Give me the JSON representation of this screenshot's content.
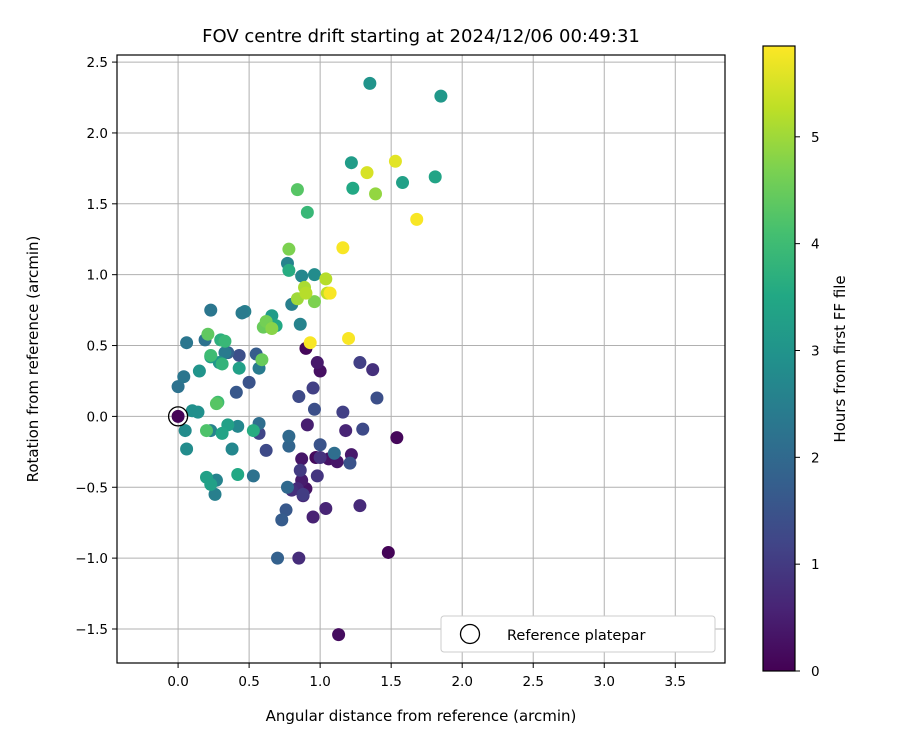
{
  "chart_data": {
    "type": "scatter",
    "title": "FOV centre drift starting at 2024/12/06 00:49:31",
    "xlabel": "Angular distance from reference (arcmin)",
    "ylabel": "Rotation from reference (arcmin)",
    "xlim": [
      -0.43,
      3.85
    ],
    "ylim": [
      -1.74,
      2.55
    ],
    "xticks": [
      "0.0",
      "0.5",
      "1.0",
      "1.5",
      "2.0",
      "2.5",
      "3.0",
      "3.5"
    ],
    "yticks": [
      "−1.5",
      "−1.0",
      "−0.5",
      "0.0",
      "0.5",
      "1.0",
      "1.5",
      "2.0",
      "2.5"
    ],
    "grid": true,
    "colormap": "viridis",
    "colorbar": {
      "label": "Hours from first FF file",
      "range": [
        0,
        5.85
      ],
      "ticks": [
        "0",
        "1",
        "2",
        "3",
        "4",
        "5"
      ]
    },
    "legend": {
      "placement": "lower-right",
      "entries": [
        "Reference platepar"
      ]
    },
    "reference_point": {
      "x": 0.0,
      "y": 0.0,
      "label": "Reference platepar"
    },
    "series": [
      {
        "points": [
          {
            "x": 0.0,
            "y": 0.0,
            "h": 0.05
          },
          {
            "x": 0.9,
            "y": 0.48,
            "h": 0.1
          },
          {
            "x": 1.48,
            "y": -0.96,
            "h": 0.05
          },
          {
            "x": 1.13,
            "y": -1.54,
            "h": 0.2
          },
          {
            "x": 1.54,
            "y": -0.15,
            "h": 0.1
          },
          {
            "x": 0.97,
            "y": -0.29,
            "h": 0.15
          },
          {
            "x": 1.0,
            "y": 0.32,
            "h": 0.25
          },
          {
            "x": 0.98,
            "y": 0.38,
            "h": 0.4
          },
          {
            "x": 0.87,
            "y": -0.3,
            "h": 0.35
          },
          {
            "x": 0.9,
            "y": -0.51,
            "h": 0.3
          },
          {
            "x": 0.87,
            "y": -0.45,
            "h": 0.45
          },
          {
            "x": 1.06,
            "y": -0.3,
            "h": 0.3
          },
          {
            "x": 1.12,
            "y": -0.32,
            "h": 0.35
          },
          {
            "x": 1.22,
            "y": -0.27,
            "h": 0.4
          },
          {
            "x": 1.18,
            "y": -0.1,
            "h": 0.6
          },
          {
            "x": 1.28,
            "y": -0.63,
            "h": 0.7
          },
          {
            "x": 0.91,
            "y": -0.06,
            "h": 0.5
          },
          {
            "x": 0.95,
            "y": -0.71,
            "h": 0.55
          },
          {
            "x": 1.04,
            "y": -0.65,
            "h": 0.6
          },
          {
            "x": 0.88,
            "y": -0.56,
            "h": 0.65
          },
          {
            "x": 0.84,
            "y": -0.51,
            "h": 0.7
          },
          {
            "x": 0.8,
            "y": -0.52,
            "h": 0.8
          },
          {
            "x": 0.85,
            "y": -1.0,
            "h": 0.75
          },
          {
            "x": 0.98,
            "y": -0.42,
            "h": 0.9
          },
          {
            "x": 1.0,
            "y": -0.29,
            "h": 0.85
          },
          {
            "x": 0.86,
            "y": -0.38,
            "h": 1.0
          },
          {
            "x": 0.88,
            "y": -0.55,
            "h": 1.05
          },
          {
            "x": 0.95,
            "y": 0.2,
            "h": 1.1
          },
          {
            "x": 1.37,
            "y": 0.33,
            "h": 0.8
          },
          {
            "x": 1.28,
            "y": 0.38,
            "h": 1.1
          },
          {
            "x": 1.16,
            "y": 0.03,
            "h": 1.1
          },
          {
            "x": 1.3,
            "y": -0.09,
            "h": 1.3
          },
          {
            "x": 1.4,
            "y": 0.13,
            "h": 1.4
          },
          {
            "x": 1.21,
            "y": -0.33,
            "h": 1.5
          },
          {
            "x": 0.85,
            "y": 0.14,
            "h": 1.3
          },
          {
            "x": 0.96,
            "y": 0.05,
            "h": 1.4
          },
          {
            "x": 1.0,
            "y": -0.2,
            "h": 1.5
          },
          {
            "x": 0.76,
            "y": -0.66,
            "h": 1.6
          },
          {
            "x": 0.73,
            "y": -0.73,
            "h": 1.7
          },
          {
            "x": 0.7,
            "y": -1.0,
            "h": 1.8
          },
          {
            "x": 0.57,
            "y": -0.12,
            "h": 1.2
          },
          {
            "x": 0.62,
            "y": -0.24,
            "h": 1.3
          },
          {
            "x": 0.43,
            "y": 0.43,
            "h": 1.4
          },
          {
            "x": 0.5,
            "y": 0.24,
            "h": 1.5
          },
          {
            "x": 0.41,
            "y": 0.17,
            "h": 1.6
          },
          {
            "x": 0.55,
            "y": 0.44,
            "h": 1.7
          },
          {
            "x": 0.35,
            "y": 0.45,
            "h": 1.8
          },
          {
            "x": 0.78,
            "y": -0.21,
            "h": 1.9
          },
          {
            "x": 0.77,
            "y": -0.5,
            "h": 2.0
          },
          {
            "x": 0.78,
            "y": -0.14,
            "h": 2.0
          },
          {
            "x": 1.1,
            "y": -0.26,
            "h": 2.1
          },
          {
            "x": 0.57,
            "y": -0.05,
            "h": 2.1
          },
          {
            "x": 0.53,
            "y": -0.42,
            "h": 2.2
          },
          {
            "x": 0.0,
            "y": 0.21,
            "h": 2.2
          },
          {
            "x": 0.04,
            "y": 0.28,
            "h": 2.3
          },
          {
            "x": 0.06,
            "y": 0.52,
            "h": 2.3
          },
          {
            "x": 0.19,
            "y": 0.54,
            "h": 2.2
          },
          {
            "x": 0.23,
            "y": 0.75,
            "h": 2.3
          },
          {
            "x": 0.33,
            "y": 0.45,
            "h": 2.4
          },
          {
            "x": 0.57,
            "y": 0.34,
            "h": 2.4
          },
          {
            "x": 0.47,
            "y": 0.74,
            "h": 2.5
          },
          {
            "x": 0.45,
            "y": 0.73,
            "h": 2.4
          },
          {
            "x": 0.8,
            "y": 0.79,
            "h": 2.5
          },
          {
            "x": 0.77,
            "y": 1.08,
            "h": 2.6
          },
          {
            "x": 0.86,
            "y": 0.65,
            "h": 2.6
          },
          {
            "x": 0.87,
            "y": 0.99,
            "h": 2.7
          },
          {
            "x": 0.96,
            "y": 1.0,
            "h": 2.8
          },
          {
            "x": 0.26,
            "y": -0.55,
            "h": 2.5
          },
          {
            "x": 0.27,
            "y": -0.45,
            "h": 2.6
          },
          {
            "x": 0.23,
            "y": -0.1,
            "h": 2.6
          },
          {
            "x": 0.38,
            "y": -0.23,
            "h": 2.7
          },
          {
            "x": 0.42,
            "y": -0.07,
            "h": 2.7
          },
          {
            "x": 0.05,
            "y": -0.1,
            "h": 2.8
          },
          {
            "x": 0.06,
            "y": -0.23,
            "h": 2.8
          },
          {
            "x": 0.1,
            "y": 0.04,
            "h": 2.9
          },
          {
            "x": 0.14,
            "y": 0.03,
            "h": 2.9
          },
          {
            "x": 0.15,
            "y": 0.32,
            "h": 3.0
          },
          {
            "x": 0.29,
            "y": 0.38,
            "h": 3.0
          },
          {
            "x": 0.23,
            "y": 0.42,
            "h": 3.2
          },
          {
            "x": 0.43,
            "y": 0.34,
            "h": 3.3
          },
          {
            "x": 0.35,
            "y": -0.06,
            "h": 3.3
          },
          {
            "x": 0.31,
            "y": -0.12,
            "h": 3.4
          },
          {
            "x": 0.2,
            "y": -0.43,
            "h": 3.3
          },
          {
            "x": 0.23,
            "y": -0.48,
            "h": 3.3
          },
          {
            "x": 0.42,
            "y": -0.41,
            "h": 3.5
          },
          {
            "x": 0.53,
            "y": -0.1,
            "h": 3.6
          },
          {
            "x": 0.66,
            "y": 0.71,
            "h": 3.2
          },
          {
            "x": 0.69,
            "y": 0.64,
            "h": 3.5
          },
          {
            "x": 1.35,
            "y": 2.35,
            "h": 3.0
          },
          {
            "x": 1.85,
            "y": 2.26,
            "h": 3.1
          },
          {
            "x": 1.22,
            "y": 1.79,
            "h": 3.2
          },
          {
            "x": 1.58,
            "y": 1.65,
            "h": 3.3
          },
          {
            "x": 1.81,
            "y": 1.69,
            "h": 3.4
          },
          {
            "x": 1.23,
            "y": 1.61,
            "h": 3.5
          },
          {
            "x": 0.78,
            "y": 1.03,
            "h": 3.6
          },
          {
            "x": 0.3,
            "y": 0.54,
            "h": 3.7
          },
          {
            "x": 0.31,
            "y": 0.37,
            "h": 3.8
          },
          {
            "x": 0.91,
            "y": 1.44,
            "h": 3.9
          },
          {
            "x": 0.33,
            "y": 0.53,
            "h": 3.9
          },
          {
            "x": 0.28,
            "y": 0.1,
            "h": 4.0
          },
          {
            "x": 0.23,
            "y": 0.43,
            "h": 4.0
          },
          {
            "x": 0.2,
            "y": -0.1,
            "h": 4.2
          },
          {
            "x": 0.27,
            "y": 0.09,
            "h": 4.3
          },
          {
            "x": 0.21,
            "y": 0.58,
            "h": 4.4
          },
          {
            "x": 0.59,
            "y": 0.4,
            "h": 4.5
          },
          {
            "x": 0.6,
            "y": 0.63,
            "h": 4.5
          },
          {
            "x": 0.62,
            "y": 0.67,
            "h": 4.6
          },
          {
            "x": 0.84,
            "y": 1.6,
            "h": 4.3
          },
          {
            "x": 0.78,
            "y": 1.18,
            "h": 4.7
          },
          {
            "x": 1.39,
            "y": 1.57,
            "h": 4.9
          },
          {
            "x": 0.96,
            "y": 0.81,
            "h": 4.7
          },
          {
            "x": 0.66,
            "y": 0.62,
            "h": 4.8
          },
          {
            "x": 0.84,
            "y": 0.83,
            "h": 5.0
          },
          {
            "x": 0.89,
            "y": 0.91,
            "h": 5.1
          },
          {
            "x": 0.9,
            "y": 0.87,
            "h": 5.2
          },
          {
            "x": 1.04,
            "y": 0.97,
            "h": 5.2
          },
          {
            "x": 1.05,
            "y": 0.87,
            "h": 5.3
          },
          {
            "x": 1.33,
            "y": 1.72,
            "h": 5.5
          },
          {
            "x": 1.53,
            "y": 1.8,
            "h": 5.6
          },
          {
            "x": 1.16,
            "y": 1.19,
            "h": 5.8
          },
          {
            "x": 1.68,
            "y": 1.39,
            "h": 5.8
          },
          {
            "x": 1.2,
            "y": 0.55,
            "h": 5.8
          },
          {
            "x": 1.07,
            "y": 0.87,
            "h": 5.8
          },
          {
            "x": 0.93,
            "y": 0.52,
            "h": 5.8
          }
        ]
      }
    ]
  }
}
